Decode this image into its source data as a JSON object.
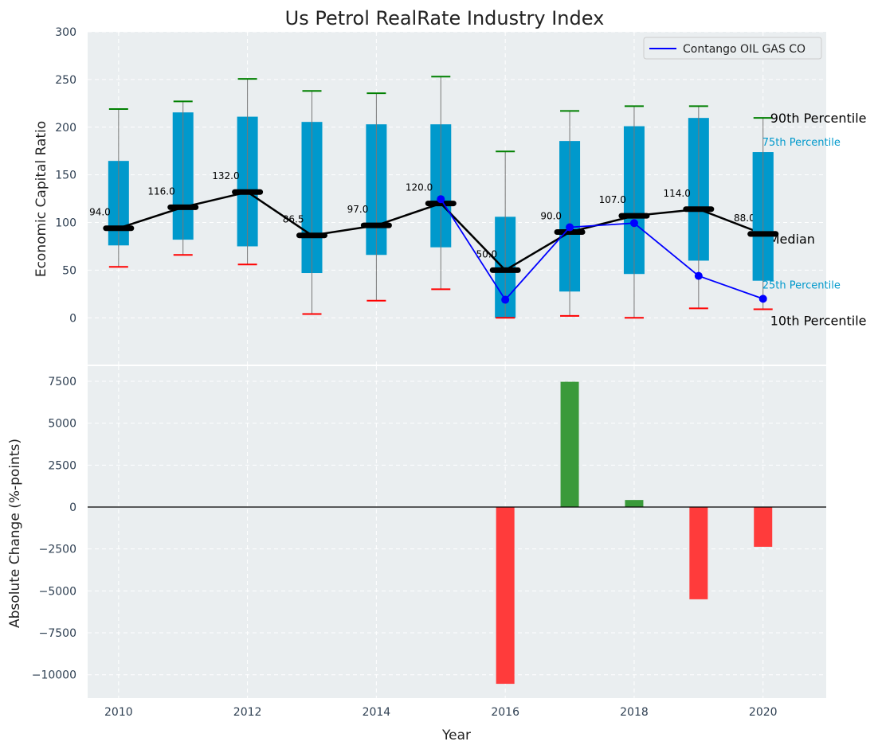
{
  "chart_data": [
    {
      "type": "box",
      "title": "Us Petrol RealRate Industry Index",
      "xlabel": "",
      "ylabel": "Economic Capital Ratio",
      "ylim": [
        -49,
        300
      ],
      "xlim": [
        2009.52,
        2020.98
      ],
      "yticks": [
        0,
        50,
        100,
        150,
        200,
        250,
        300
      ],
      "grid": true,
      "legend": {
        "placement": "top-right",
        "entries": [
          "Contango OIL GAS CO"
        ]
      },
      "years": [
        2010,
        2011,
        2012,
        2013,
        2014,
        2015,
        2016,
        2017,
        2018,
        2019,
        2020
      ],
      "p10": [
        53.5,
        66,
        56,
        4,
        18,
        30,
        0,
        2,
        0,
        10,
        9
      ],
      "p25": [
        76,
        82,
        75,
        47,
        66,
        74,
        0,
        27.6,
        46,
        60,
        39
      ],
      "median": [
        94.0,
        116.0,
        132.0,
        86.5,
        97.0,
        120.0,
        50.0,
        90.0,
        107.0,
        114.0,
        88.0
      ],
      "median_labels": [
        "94.0",
        "116.0",
        "132.0",
        "86.5",
        "97.0",
        "120.0",
        "50.0",
        "90.0",
        "107.0",
        "114.0",
        "88.0"
      ],
      "p75": [
        164.6,
        215.5,
        211,
        205.5,
        203,
        203,
        106,
        185.5,
        201,
        209.7,
        173.8
      ],
      "p90": [
        219,
        227,
        250.6,
        238,
        235.6,
        253,
        174.6,
        217,
        222,
        222,
        209.7
      ],
      "company_series": {
        "name": "Contango OIL GAS CO",
        "years": [
          2015,
          2016,
          2017,
          2018,
          2019,
          2020
        ],
        "values": [
          124.5,
          19,
          95,
          99.4,
          44,
          20
        ]
      },
      "percentile_annotations": {
        "p90": "90th Percentile",
        "p75": "75th Percentile",
        "median": "Median",
        "p25": "25th Percentile",
        "p10": "10th Percentile"
      },
      "colors": {
        "box": "#0099cc",
        "p90": "#008000",
        "p10": "#ff0000",
        "median": "#000000",
        "company": "#0000ff"
      }
    },
    {
      "type": "bar",
      "xlabel": "Year",
      "ylabel": "Absolute Change (%-points)",
      "ylim": [
        -11390,
        8400
      ],
      "yticks": [
        -10000,
        -7500,
        -5000,
        -2500,
        0,
        2500,
        5000,
        7500
      ],
      "ytick_labels": [
        "−10000",
        "−7500",
        "−5000",
        "−2500",
        "0",
        "2500",
        "5000",
        "7500"
      ],
      "xticks": [
        2010,
        2012,
        2014,
        2016,
        2018,
        2020
      ],
      "grid": true,
      "x": [
        2016,
        2017,
        2018,
        2019,
        2020
      ],
      "values": [
        -10540,
        7470,
        420,
        -5500,
        -2370
      ],
      "colors": {
        "positive": "#3a9a3a",
        "negative": "#ff3b3b"
      }
    }
  ]
}
